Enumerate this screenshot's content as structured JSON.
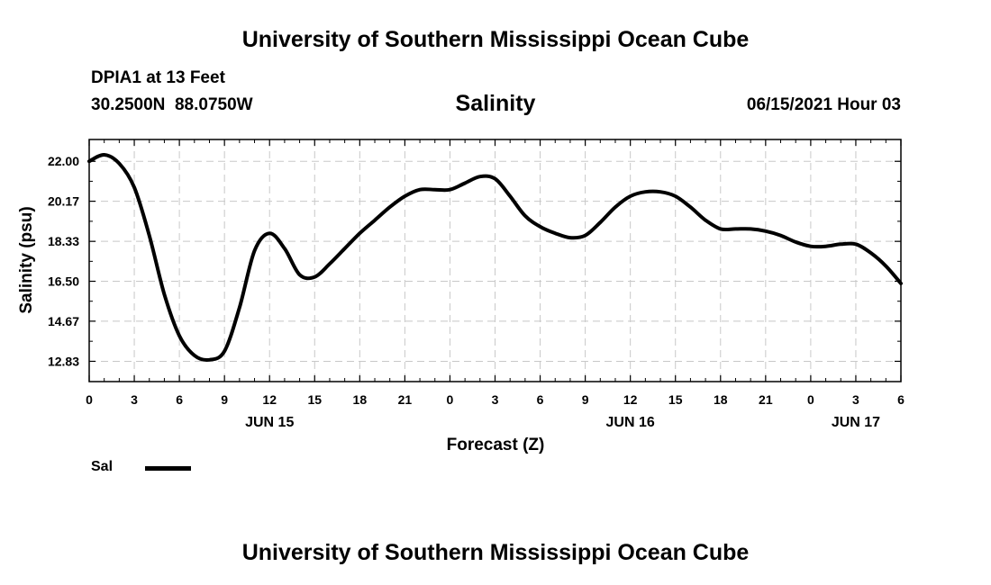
{
  "header": {
    "title_top": "University of Southern Mississippi Ocean Cube",
    "station": "DPIA1 at 13 Feet",
    "coords": "30.2500N  88.0750W",
    "plot_title": "Salinity",
    "timestamp": "06/15/2021 Hour 03",
    "title_bottom": "University of Southern Mississippi Ocean Cube"
  },
  "legend": {
    "label": "Sal",
    "color": "#000000"
  },
  "chart_data": {
    "type": "line",
    "ylabel": "Salinity (psu)",
    "xlabel": "Forecast (Z)",
    "ylim": [
      11.9,
      23.0
    ],
    "yticks": [
      22.0,
      20.17,
      18.33,
      16.5,
      14.67,
      12.83
    ],
    "ytick_labels": [
      "22.00",
      "20.17",
      "18.33",
      "16.50",
      "14.67",
      "12.83"
    ],
    "xlim": [
      0,
      54
    ],
    "xticks": [
      0,
      3,
      6,
      9,
      12,
      15,
      18,
      21,
      24,
      27,
      30,
      33,
      36,
      39,
      42,
      45,
      48,
      51,
      54
    ],
    "xtick_labels": [
      "0",
      "3",
      "6",
      "9",
      "12",
      "15",
      "18",
      "21",
      "0",
      "3",
      "6",
      "9",
      "12",
      "15",
      "18",
      "21",
      "0",
      "3",
      "6"
    ],
    "date_labels": [
      {
        "label": "JUN 15",
        "x": 12
      },
      {
        "label": "JUN 16",
        "x": 36
      },
      {
        "label": "JUN 17",
        "x": 51
      }
    ],
    "grid": true,
    "series": [
      {
        "name": "Sal",
        "x": [
          0,
          1,
          2,
          3,
          4,
          5,
          6,
          7,
          8,
          9,
          10,
          11,
          12,
          13,
          14,
          15,
          16,
          17,
          18,
          19,
          20,
          21,
          22,
          23,
          24,
          25,
          26,
          27,
          28,
          29,
          30,
          31,
          32,
          33,
          34,
          35,
          36,
          37,
          38,
          39,
          40,
          41,
          42,
          43,
          44,
          45,
          46,
          47,
          48,
          49,
          50,
          51,
          52,
          53,
          54
        ],
        "y": [
          22.0,
          22.3,
          21.9,
          20.8,
          18.6,
          15.9,
          14.0,
          13.1,
          12.9,
          13.3,
          15.3,
          17.9,
          18.7,
          18.0,
          16.8,
          16.7,
          17.3,
          18.0,
          18.7,
          19.3,
          19.9,
          20.4,
          20.7,
          20.7,
          20.7,
          21.0,
          21.3,
          21.2,
          20.4,
          19.5,
          19.0,
          18.7,
          18.5,
          18.6,
          19.2,
          19.9,
          20.4,
          20.6,
          20.6,
          20.4,
          19.9,
          19.3,
          18.9,
          18.9,
          18.9,
          18.8,
          18.6,
          18.3,
          18.1,
          18.1,
          18.2,
          18.2,
          17.8,
          17.2,
          16.4
        ]
      }
    ]
  }
}
